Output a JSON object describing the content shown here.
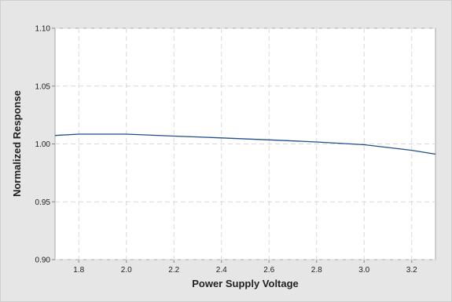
{
  "chart_data": {
    "type": "line",
    "title": "",
    "xlabel": "Power Supply Voltage",
    "ylabel": "Normalized Response",
    "xlim": [
      1.7,
      3.3
    ],
    "ylim": [
      0.9,
      1.1
    ],
    "xticks": [
      "1.8",
      "2.0",
      "2.2",
      "2.4",
      "2.6",
      "2.8",
      "3.0",
      "3.2"
    ],
    "yticks": [
      "0.90",
      "0.95",
      "1.00",
      "1.05",
      "1.10"
    ],
    "grid": true,
    "legend": "none",
    "series": [
      {
        "color": "#1f4e8c",
        "x": [
          1.7,
          1.8,
          2.0,
          2.2,
          2.4,
          2.6,
          2.8,
          3.0,
          3.2,
          3.3
        ],
        "y": [
          1.0073,
          1.0085,
          1.0085,
          1.0068,
          1.0052,
          1.0035,
          1.0017,
          0.9993,
          0.9945,
          0.9912
        ]
      }
    ]
  }
}
